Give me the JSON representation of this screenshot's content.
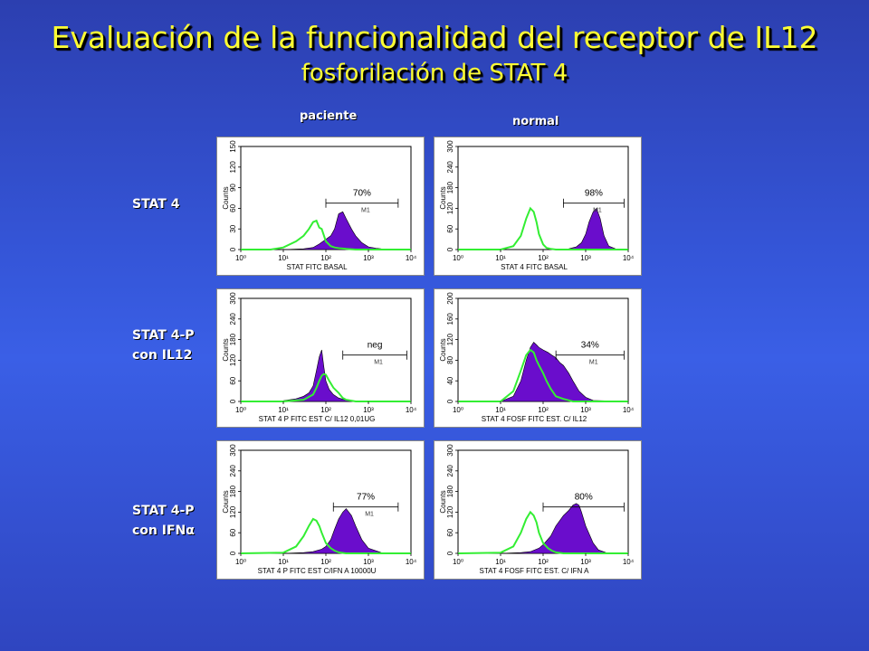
{
  "header": {
    "title": "Evaluación de la funcionalidad del receptor de IL12",
    "subtitle": "fosforilación de STAT 4"
  },
  "columns": {
    "left": "paciente",
    "right": "normal"
  },
  "rows": [
    {
      "line1": "STAT 4",
      "line2": ""
    },
    {
      "line1": "STAT 4-P",
      "line2": "con IL12"
    },
    {
      "line1": "STAT 4-P",
      "line2": "con IFNα"
    }
  ],
  "colors": {
    "fill": "#6a0dcc",
    "control": "#33ee33",
    "title": "#ffff33"
  },
  "chart_data": [
    {
      "type": "area",
      "id": "p00",
      "title": "",
      "xlabel": "STAT FITC BASAL",
      "ylabel": "Counts",
      "xscale": "log",
      "xlim": [
        1,
        10000
      ],
      "ylim": [
        0,
        150
      ],
      "yticks": [
        "0",
        "30",
        "60",
        "90",
        "120",
        "150"
      ],
      "xticks": [
        "10⁰",
        "10¹",
        "10²",
        "10³",
        "10⁴"
      ],
      "gate": {
        "label": "M1",
        "percent": "70%",
        "x": [
          100,
          5000
        ]
      },
      "series": [
        {
          "x": [
            1,
            10,
            30,
            50,
            70,
            100,
            130,
            160,
            200,
            250,
            300,
            400,
            500,
            700,
            1000,
            1500,
            2000,
            3000,
            5000,
            10000
          ],
          "values": [
            0,
            0,
            1,
            3,
            8,
            15,
            20,
            30,
            52,
            55,
            45,
            30,
            20,
            10,
            4,
            2,
            1,
            0,
            0,
            0
          ]
        },
        {
          "x": [
            1,
            5,
            10,
            20,
            30,
            40,
            50,
            60,
            70,
            80,
            100,
            130,
            160,
            200,
            300,
            500,
            1000,
            10000
          ],
          "values": [
            0,
            0,
            3,
            12,
            20,
            30,
            40,
            42,
            32,
            30,
            12,
            5,
            3,
            2,
            1,
            0,
            0,
            0
          ]
        }
      ]
    },
    {
      "type": "area",
      "id": "p01",
      "title": "",
      "xlabel": "STAT 4 FITC BASAL",
      "ylabel": "Counts",
      "xscale": "log",
      "xlim": [
        1,
        10000
      ],
      "ylim": [
        0,
        300
      ],
      "yticks": [
        "0",
        "60",
        "120",
        "180",
        "240",
        "300"
      ],
      "xticks": [
        "10⁰",
        "10¹",
        "10²",
        "10³",
        "10⁴"
      ],
      "gate": {
        "label": "M1",
        "percent": "98%",
        "x": [
          300,
          8000
        ]
      },
      "series": [
        {
          "x": [
            1,
            200,
            400,
            600,
            800,
            1000,
            1200,
            1500,
            1800,
            2200,
            2700,
            3500,
            5000,
            10000
          ],
          "values": [
            0,
            0,
            2,
            8,
            20,
            45,
            80,
            110,
            120,
            90,
            40,
            10,
            2,
            0
          ]
        },
        {
          "x": [
            1,
            10,
            20,
            30,
            40,
            50,
            60,
            70,
            80,
            100,
            120,
            150,
            200,
            300,
            10000
          ],
          "values": [
            0,
            0,
            10,
            40,
            90,
            120,
            110,
            80,
            45,
            15,
            5,
            2,
            0,
            0,
            0
          ]
        }
      ]
    },
    {
      "type": "area",
      "id": "p10",
      "title": "",
      "xlabel": "STAT 4 P FITC EST C/ IL12 0,01UG",
      "ylabel": "Counts",
      "xscale": "log",
      "xlim": [
        1,
        10000
      ],
      "ylim": [
        0,
        300
      ],
      "yticks": [
        "0",
        "60",
        "120",
        "180",
        "240",
        "300"
      ],
      "xticks": [
        "10⁰",
        "10¹",
        "10²",
        "10³",
        "10⁴"
      ],
      "gate": {
        "label": "M1",
        "percent": "neg",
        "x": [
          250,
          8000
        ]
      },
      "series": [
        {
          "x": [
            1,
            10,
            20,
            30,
            40,
            50,
            60,
            70,
            80,
            90,
            100,
            120,
            150,
            200,
            300,
            500,
            10000
          ],
          "values": [
            0,
            2,
            8,
            15,
            25,
            45,
            90,
            130,
            150,
            100,
            60,
            35,
            20,
            10,
            4,
            0,
            0
          ]
        },
        {
          "x": [
            1,
            10,
            30,
            50,
            60,
            70,
            80,
            90,
            100,
            120,
            150,
            200,
            250,
            300,
            500,
            10000
          ],
          "values": [
            0,
            0,
            5,
            20,
            40,
            60,
            75,
            80,
            78,
            60,
            40,
            25,
            10,
            5,
            0,
            0
          ]
        }
      ]
    },
    {
      "type": "area",
      "id": "p11",
      "title": "",
      "xlabel": "STAT 4 FOSF FITC EST. C/ IL12",
      "ylabel": "Counts",
      "xscale": "log",
      "xlim": [
        1,
        10000
      ],
      "ylim": [
        0,
        200
      ],
      "yticks": [
        "0",
        "40",
        "80",
        "120",
        "160",
        "200"
      ],
      "xticks": [
        "10⁰",
        "10¹",
        "10²",
        "10³",
        "10⁴"
      ],
      "gate": {
        "label": "M1",
        "percent": "34%",
        "x": [
          200,
          8000
        ]
      },
      "series": [
        {
          "x": [
            1,
            10,
            20,
            30,
            40,
            50,
            60,
            70,
            80,
            100,
            130,
            160,
            200,
            250,
            300,
            400,
            500,
            700,
            1000,
            1500,
            10000
          ],
          "values": [
            0,
            0,
            10,
            40,
            80,
            105,
            115,
            110,
            105,
            100,
            95,
            90,
            85,
            75,
            70,
            55,
            40,
            20,
            8,
            2,
            0
          ]
        },
        {
          "x": [
            1,
            10,
            20,
            30,
            40,
            50,
            60,
            70,
            80,
            100,
            120,
            150,
            200,
            300,
            500,
            10000
          ],
          "values": [
            0,
            0,
            20,
            60,
            90,
            100,
            95,
            80,
            70,
            55,
            40,
            25,
            10,
            5,
            0,
            0
          ]
        }
      ]
    },
    {
      "type": "area",
      "id": "p20",
      "title": "",
      "xlabel": "STAT 4 P FITC EST C/IFN A 10000U",
      "ylabel": "Counts",
      "xscale": "log",
      "xlim": [
        1,
        10000
      ],
      "ylim": [
        0,
        300
      ],
      "yticks": [
        "0",
        "60",
        "120",
        "180",
        "240",
        "300"
      ],
      "xticks": [
        "10⁰",
        "10¹",
        "10²",
        "10³",
        "10⁴"
      ],
      "gate": {
        "label": "M1",
        "percent": "77%",
        "x": [
          150,
          5000
        ]
      },
      "series": [
        {
          "x": [
            1,
            10,
            30,
            50,
            80,
            100,
            130,
            160,
            200,
            250,
            300,
            400,
            500,
            700,
            1000,
            2000,
            10000
          ],
          "values": [
            0,
            0,
            2,
            5,
            12,
            20,
            40,
            70,
            100,
            120,
            130,
            110,
            80,
            40,
            15,
            2,
            0
          ]
        },
        {
          "x": [
            1,
            10,
            20,
            30,
            40,
            50,
            60,
            70,
            80,
            100,
            130,
            160,
            200,
            300,
            10000
          ],
          "values": [
            0,
            2,
            20,
            50,
            80,
            100,
            95,
            80,
            60,
            30,
            15,
            8,
            3,
            0,
            0
          ]
        }
      ]
    },
    {
      "type": "area",
      "id": "p21",
      "title": "",
      "xlabel": "STAT 4 FOSF FITC EST. C/ IFN A",
      "ylabel": "Counts",
      "xscale": "log",
      "xlim": [
        1,
        10000
      ],
      "ylim": [
        0,
        300
      ],
      "yticks": [
        "0",
        "60",
        "120",
        "180",
        "240",
        "300"
      ],
      "xticks": [
        "10⁰",
        "10¹",
        "10²",
        "10³",
        "10⁴"
      ],
      "gate": {
        "label": "",
        "percent": "80%",
        "x": [
          100,
          8000
        ]
      },
      "series": [
        {
          "x": [
            1,
            10,
            30,
            50,
            80,
            100,
            150,
            200,
            300,
            400,
            500,
            600,
            700,
            800,
            1000,
            1500,
            2000,
            3000,
            10000
          ],
          "values": [
            0,
            0,
            2,
            5,
            15,
            25,
            50,
            80,
            110,
            125,
            140,
            145,
            140,
            120,
            80,
            30,
            10,
            2,
            0
          ]
        },
        {
          "x": [
            1,
            10,
            20,
            30,
            40,
            50,
            60,
            70,
            80,
            100,
            130,
            160,
            200,
            300,
            10000
          ],
          "values": [
            0,
            2,
            20,
            60,
            100,
            120,
            110,
            90,
            60,
            30,
            15,
            8,
            3,
            0,
            0
          ]
        }
      ]
    }
  ]
}
